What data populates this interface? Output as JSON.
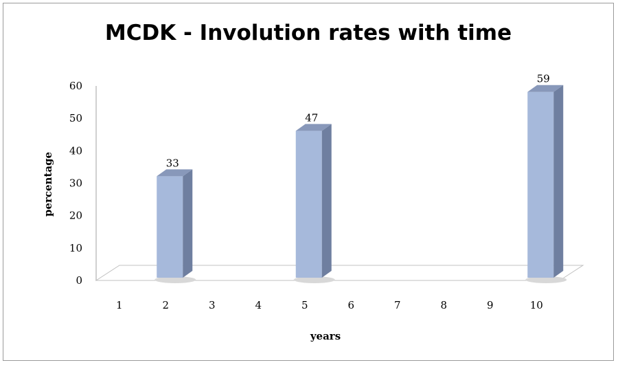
{
  "chart_data": {
    "type": "bar",
    "title": "MCDK - Involution rates with time",
    "xlabel": "years",
    "ylabel": "percentage",
    "categories": [
      "1",
      "2",
      "3",
      "4",
      "5",
      "6",
      "7",
      "8",
      "9",
      "10"
    ],
    "values": [
      null,
      33,
      null,
      null,
      47,
      null,
      null,
      null,
      null,
      59
    ],
    "data_labels": [
      "",
      "33",
      "",
      "",
      "47",
      "",
      "",
      "",
      "",
      "59"
    ],
    "ylim": [
      0,
      60
    ],
    "y_ticks": [
      "0",
      "10",
      "20",
      "30",
      "40",
      "50",
      "60"
    ],
    "grid": false,
    "legend": "none",
    "style": "3d-column",
    "colors": {
      "bar_front": "#a6b9db",
      "bar_side": "#6f7fa0",
      "bar_top": "#8898ba",
      "floor": "#c0c0c0"
    }
  }
}
